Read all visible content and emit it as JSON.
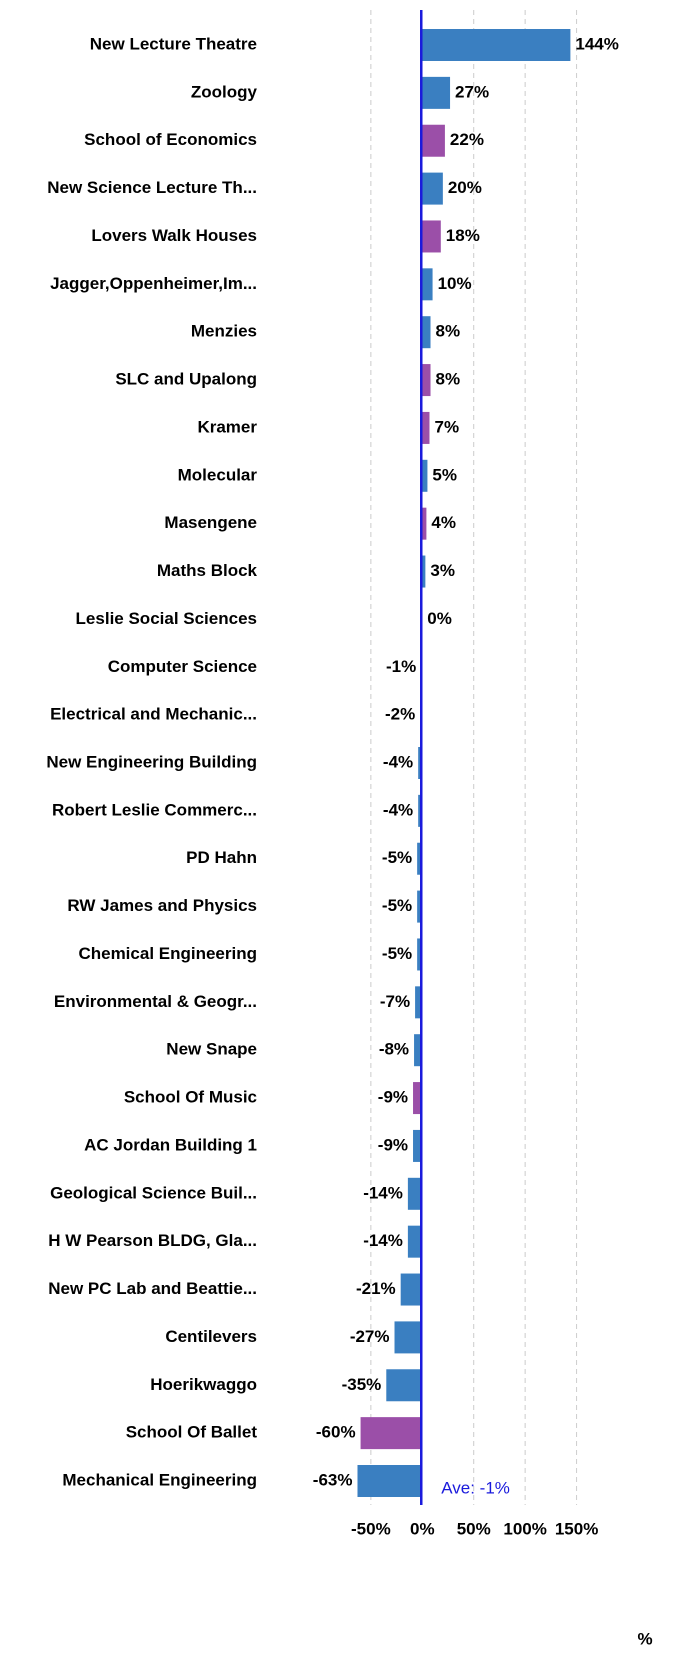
{
  "chart_data": {
    "type": "hbar",
    "categories": [
      "New Lecture Theatre",
      "Zoology",
      "School of Economics",
      "New Science Lecture Th...",
      "Lovers Walk Houses",
      "Jagger,Oppenheimer,Im...",
      "Menzies",
      "SLC and Upalong",
      "Kramer",
      "Molecular",
      "Masengene",
      "Maths Block",
      "Leslie Social Sciences",
      "Computer Science",
      "Electrical and Mechanic...",
      "New Engineering Building",
      "Robert Leslie Commerc...",
      "PD Hahn",
      "RW James and Physics",
      "Chemical Engineering",
      "Environmental & Geogr...",
      "New Snape",
      "School Of Music",
      "AC Jordan Building 1",
      "Geological Science Buil...",
      "H W Pearson BLDG, Gla...",
      "New PC Lab and Beattie...",
      "Centilevers",
      "Hoerikwaggo",
      "School Of Ballet",
      "Mechanical Engineering"
    ],
    "values": [
      144,
      27,
      22,
      20,
      18,
      10,
      8,
      8,
      7,
      5,
      4,
      3,
      0,
      -1,
      -2,
      -4,
      -4,
      -5,
      -5,
      -5,
      -7,
      -8,
      -9,
      -9,
      -14,
      -14,
      -21,
      -27,
      -35,
      -60,
      -63
    ],
    "value_labels": [
      "144%",
      "27%",
      "22%",
      "20%",
      "18%",
      "10%",
      "8%",
      "8%",
      "7%",
      "5%",
      "4%",
      "3%",
      "0%",
      "-1%",
      "-2%",
      "-4%",
      "-4%",
      "-5%",
      "-5%",
      "-5%",
      "-7%",
      "-8%",
      "-9%",
      "-9%",
      "-14%",
      "-14%",
      "-21%",
      "-27%",
      "-35%",
      "-60%",
      "-63%"
    ],
    "colors": [
      "#3a7fc1",
      "#3a7fc1",
      "#9b4fa8",
      "#3a7fc1",
      "#9b4fa8",
      "#3a7fc1",
      "#3a7fc1",
      "#9b4fa8",
      "#9b4fa8",
      "#3a7fc1",
      "#9b4fa8",
      "#3a7fc1",
      "#3a7fc1",
      "#3a7fc1",
      "#3a7fc1",
      "#3a7fc1",
      "#3a7fc1",
      "#3a7fc1",
      "#3a7fc1",
      "#3a7fc1",
      "#3a7fc1",
      "#3a7fc1",
      "#9b4fa8",
      "#3a7fc1",
      "#3a7fc1",
      "#3a7fc1",
      "#3a7fc1",
      "#3a7fc1",
      "#3a7fc1",
      "#9b4fa8",
      "#3a7fc1"
    ],
    "xlim": [
      -150,
      200
    ],
    "xticks": [
      {
        "value": -50,
        "label": "-50%"
      },
      {
        "value": 0,
        "label": "0%"
      },
      {
        "value": 50,
        "label": "50%"
      },
      {
        "value": 100,
        "label": "100%"
      },
      {
        "value": 150,
        "label": "150%"
      }
    ],
    "grid": true,
    "average": {
      "value": -1,
      "label": "Ave: -1%"
    },
    "average_color": "#1a1adc",
    "xlabel": "%"
  }
}
